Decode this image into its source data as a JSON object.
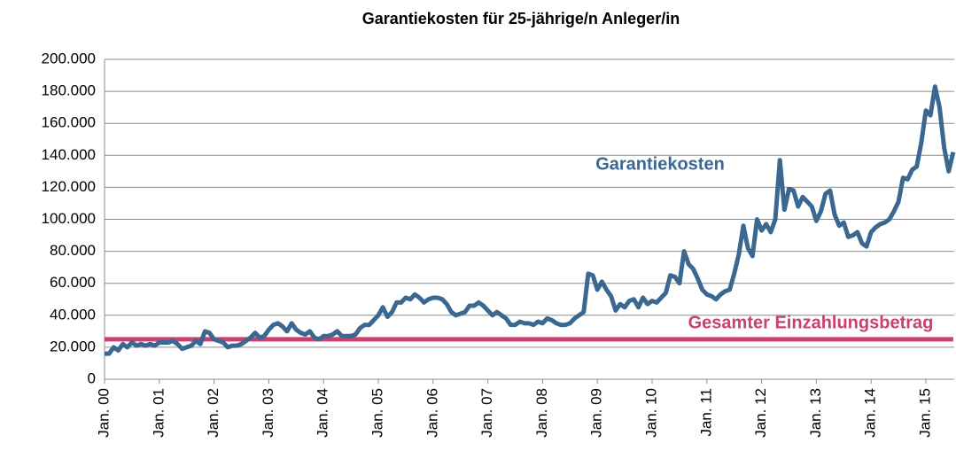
{
  "chart_data": {
    "type": "line",
    "title": "Garantiekosten für 25-jährige/n Anleger/in",
    "categories": [
      "Jan. 00",
      null,
      null,
      null,
      null,
      null,
      null,
      null,
      null,
      null,
      null,
      null,
      "Jan. 01",
      null,
      null,
      null,
      null,
      null,
      null,
      null,
      null,
      null,
      null,
      null,
      "Jan. 02",
      null,
      null,
      null,
      null,
      null,
      null,
      null,
      null,
      null,
      null,
      null,
      "Jan. 03",
      null,
      null,
      null,
      null,
      null,
      null,
      null,
      null,
      null,
      null,
      null,
      "Jan. 04",
      null,
      null,
      null,
      null,
      null,
      null,
      null,
      null,
      null,
      null,
      null,
      "Jan. 05",
      null,
      null,
      null,
      null,
      null,
      null,
      null,
      null,
      null,
      null,
      null,
      "Jan. 06",
      null,
      null,
      null,
      null,
      null,
      null,
      null,
      null,
      null,
      null,
      null,
      "Jan. 07",
      null,
      null,
      null,
      null,
      null,
      null,
      null,
      null,
      null,
      null,
      null,
      "Jan. 08",
      null,
      null,
      null,
      null,
      null,
      null,
      null,
      null,
      null,
      null,
      null,
      "Jan. 09",
      null,
      null,
      null,
      null,
      null,
      null,
      null,
      null,
      null,
      null,
      null,
      "Jan. 10",
      null,
      null,
      null,
      null,
      null,
      null,
      null,
      null,
      null,
      null,
      null,
      "Jan. 11",
      null,
      null,
      null,
      null,
      null,
      null,
      null,
      null,
      null,
      null,
      null,
      "Jan. 12",
      null,
      null,
      null,
      null,
      null,
      null,
      null,
      null,
      null,
      null,
      null,
      "Jan. 13",
      null,
      null,
      null,
      null,
      null,
      null,
      null,
      null,
      null,
      null,
      null,
      "Jan. 14",
      null,
      null,
      null,
      null,
      null,
      null,
      null,
      null,
      null,
      null,
      null,
      "Jan. 15",
      null,
      null,
      null,
      null,
      null,
      null
    ],
    "series": [
      {
        "name": "Garantiekosten",
        "color": "#3a6891",
        "values": [
          16000,
          16000,
          20000,
          18000,
          22000,
          20000,
          23000,
          21000,
          22000,
          21000,
          22000,
          21000,
          23000,
          23000,
          23000,
          24000,
          22000,
          19000,
          20000,
          21000,
          24000,
          22000,
          30000,
          29000,
          25000,
          24000,
          23000,
          20000,
          21000,
          21000,
          22000,
          24000,
          26000,
          29000,
          26000,
          27000,
          31000,
          34000,
          35000,
          33000,
          30000,
          35000,
          31000,
          29000,
          28000,
          30000,
          26000,
          25000,
          27000,
          27000,
          28000,
          30000,
          27000,
          27000,
          27000,
          28000,
          32000,
          34000,
          34000,
          37000,
          40000,
          45000,
          39000,
          42000,
          48000,
          48000,
          51000,
          50000,
          53000,
          51000,
          48000,
          50000,
          51000,
          51000,
          50000,
          47000,
          42000,
          40000,
          41000,
          42000,
          46000,
          46000,
          48000,
          46000,
          43000,
          40000,
          42000,
          40000,
          38000,
          34000,
          34000,
          36000,
          35000,
          35000,
          34000,
          36000,
          35000,
          38000,
          37000,
          35000,
          34000,
          34000,
          35000,
          38000,
          40000,
          42000,
          66000,
          65000,
          56000,
          61000,
          56000,
          52000,
          43000,
          47000,
          45000,
          49000,
          50000,
          45000,
          51000,
          47000,
          49000,
          48000,
          51000,
          54000,
          65000,
          64000,
          60000,
          80000,
          72000,
          69000,
          63000,
          56000,
          53000,
          52000,
          50000,
          53000,
          55000,
          56000,
          66000,
          78000,
          96000,
          82000,
          77000,
          100000,
          93000,
          97000,
          92000,
          100000,
          137000,
          106000,
          119000,
          118000,
          108000,
          114000,
          111000,
          108000,
          99000,
          105000,
          116000,
          118000,
          103000,
          96000,
          98000,
          89000,
          90000,
          92000,
          85000,
          83000,
          92000,
          95000,
          97000,
          98000,
          100000,
          105000,
          111000,
          126000,
          125000,
          131000,
          133000,
          148000,
          168000,
          165000,
          183000,
          170000,
          145000,
          130000,
          142000
        ]
      },
      {
        "name": "Gesamter Einzahlungsbetrag",
        "color": "#c8426f",
        "values": [
          25000,
          25000,
          25000,
          25000,
          25000,
          25000,
          25000,
          25000,
          25000,
          25000,
          25000,
          25000,
          25000,
          25000,
          25000,
          25000,
          25000,
          25000,
          25000,
          25000,
          25000,
          25000,
          25000,
          25000,
          25000,
          25000,
          25000,
          25000,
          25000,
          25000,
          25000,
          25000,
          25000,
          25000,
          25000,
          25000,
          25000,
          25000,
          25000,
          25000,
          25000,
          25000,
          25000,
          25000,
          25000,
          25000,
          25000,
          25000,
          25000,
          25000,
          25000,
          25000,
          25000,
          25000,
          25000,
          25000,
          25000,
          25000,
          25000,
          25000,
          25000,
          25000,
          25000,
          25000,
          25000,
          25000,
          25000,
          25000,
          25000,
          25000,
          25000,
          25000,
          25000,
          25000,
          25000,
          25000,
          25000,
          25000,
          25000,
          25000,
          25000,
          25000,
          25000,
          25000,
          25000,
          25000,
          25000,
          25000,
          25000,
          25000,
          25000,
          25000,
          25000,
          25000,
          25000,
          25000,
          25000,
          25000,
          25000,
          25000,
          25000,
          25000,
          25000,
          25000,
          25000,
          25000,
          25000,
          25000,
          25000,
          25000,
          25000,
          25000,
          25000,
          25000,
          25000,
          25000,
          25000,
          25000,
          25000,
          25000,
          25000,
          25000,
          25000,
          25000,
          25000,
          25000,
          25000,
          25000,
          25000,
          25000,
          25000,
          25000,
          25000,
          25000,
          25000,
          25000,
          25000,
          25000,
          25000,
          25000,
          25000,
          25000,
          25000,
          25000,
          25000,
          25000,
          25000,
          25000,
          25000,
          25000,
          25000,
          25000,
          25000,
          25000,
          25000,
          25000,
          25000,
          25000,
          25000,
          25000,
          25000,
          25000,
          25000,
          25000,
          25000,
          25000,
          25000,
          25000,
          25000,
          25000,
          25000,
          25000,
          25000,
          25000,
          25000,
          25000,
          25000,
          25000,
          25000,
          25000,
          25000,
          25000,
          25000,
          25000,
          25000,
          25000,
          25000
        ]
      }
    ],
    "ylim": [
      0,
      200000
    ],
    "yticks": [
      0,
      {
        "value": 20000,
        "label": "20.000"
      },
      {
        "value": 40000,
        "label": "40.000"
      },
      {
        "value": 60000,
        "label": "60.000"
      },
      {
        "value": 80000,
        "label": "80.000"
      },
      {
        "value": 100000,
        "label": "100.000"
      },
      {
        "value": 120000,
        "label": "120.000"
      },
      {
        "value": 140000,
        "label": "140.000"
      },
      {
        "value": 160000,
        "label": "160.000"
      },
      {
        "value": 180000,
        "label": "180.000"
      },
      {
        "value": 200000,
        "label": "200.000"
      }
    ],
    "grid": true
  }
}
